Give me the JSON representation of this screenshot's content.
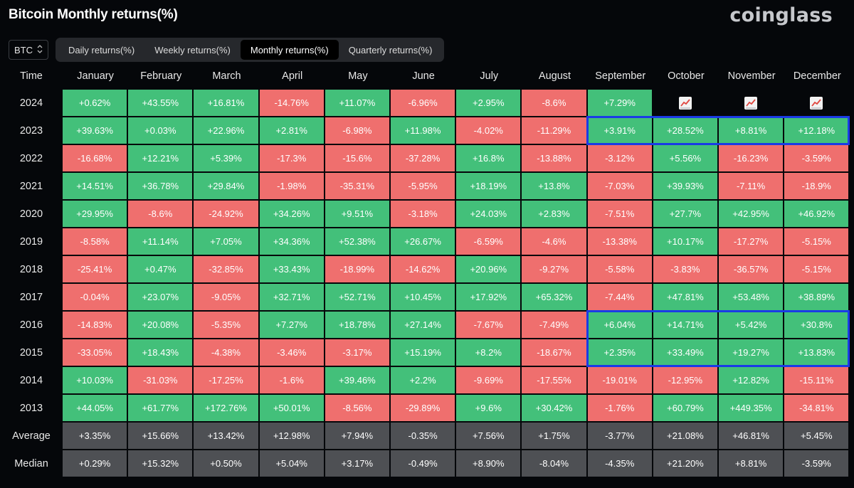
{
  "header": {
    "title": "Bitcoin Monthly returns(%)",
    "brand": "coinglass"
  },
  "asset_select": {
    "value": "BTC"
  },
  "tabs": [
    {
      "label": "Daily returns(%)",
      "active": false
    },
    {
      "label": "Weekly returns(%)",
      "active": false
    },
    {
      "label": "Monthly returns(%)",
      "active": true
    },
    {
      "label": "Quarterly returns(%)",
      "active": false
    }
  ],
  "colors": {
    "positive": "#43c07a",
    "negative": "#ef6f6e",
    "stat": "#4e5054",
    "highlight": "#1a3be6"
  },
  "chart_data": {
    "type": "heatmap",
    "title": "Bitcoin Monthly returns(%)",
    "corner_label": "Time",
    "columns": [
      "January",
      "February",
      "March",
      "April",
      "May",
      "June",
      "July",
      "August",
      "September",
      "October",
      "November",
      "December"
    ],
    "rows": [
      {
        "label": "2024",
        "values": [
          "+0.62%",
          "+43.55%",
          "+16.81%",
          "-14.76%",
          "+11.07%",
          "-6.96%",
          "+2.95%",
          "-8.6%",
          "+7.29%",
          null,
          null,
          null
        ]
      },
      {
        "label": "2023",
        "values": [
          "+39.63%",
          "+0.03%",
          "+22.96%",
          "+2.81%",
          "-6.98%",
          "+11.98%",
          "-4.02%",
          "-11.29%",
          "+3.91%",
          "+28.52%",
          "+8.81%",
          "+12.18%"
        ]
      },
      {
        "label": "2022",
        "values": [
          "-16.68%",
          "+12.21%",
          "+5.39%",
          "-17.3%",
          "-15.6%",
          "-37.28%",
          "+16.8%",
          "-13.88%",
          "-3.12%",
          "+5.56%",
          "-16.23%",
          "-3.59%"
        ]
      },
      {
        "label": "2021",
        "values": [
          "+14.51%",
          "+36.78%",
          "+29.84%",
          "-1.98%",
          "-35.31%",
          "-5.95%",
          "+18.19%",
          "+13.8%",
          "-7.03%",
          "+39.93%",
          "-7.11%",
          "-18.9%"
        ]
      },
      {
        "label": "2020",
        "values": [
          "+29.95%",
          "-8.6%",
          "-24.92%",
          "+34.26%",
          "+9.51%",
          "-3.18%",
          "+24.03%",
          "+2.83%",
          "-7.51%",
          "+27.7%",
          "+42.95%",
          "+46.92%"
        ]
      },
      {
        "label": "2019",
        "values": [
          "-8.58%",
          "+11.14%",
          "+7.05%",
          "+34.36%",
          "+52.38%",
          "+26.67%",
          "-6.59%",
          "-4.6%",
          "-13.38%",
          "+10.17%",
          "-17.27%",
          "-5.15%"
        ]
      },
      {
        "label": "2018",
        "values": [
          "-25.41%",
          "+0.47%",
          "-32.85%",
          "+33.43%",
          "-18.99%",
          "-14.62%",
          "+20.96%",
          "-9.27%",
          "-5.58%",
          "-3.83%",
          "-36.57%",
          "-5.15%"
        ]
      },
      {
        "label": "2017",
        "values": [
          "-0.04%",
          "+23.07%",
          "-9.05%",
          "+32.71%",
          "+52.71%",
          "+10.45%",
          "+17.92%",
          "+65.32%",
          "-7.44%",
          "+47.81%",
          "+53.48%",
          "+38.89%"
        ]
      },
      {
        "label": "2016",
        "values": [
          "-14.83%",
          "+20.08%",
          "-5.35%",
          "+7.27%",
          "+18.78%",
          "+27.14%",
          "-7.67%",
          "-7.49%",
          "+6.04%",
          "+14.71%",
          "+5.42%",
          "+30.8%"
        ]
      },
      {
        "label": "2015",
        "values": [
          "-33.05%",
          "+18.43%",
          "-4.38%",
          "-3.46%",
          "-3.17%",
          "+15.19%",
          "+8.2%",
          "-18.67%",
          "+2.35%",
          "+33.49%",
          "+19.27%",
          "+13.83%"
        ]
      },
      {
        "label": "2014",
        "values": [
          "+10.03%",
          "-31.03%",
          "-17.25%",
          "-1.6%",
          "+39.46%",
          "+2.2%",
          "-9.69%",
          "-17.55%",
          "-19.01%",
          "-12.95%",
          "+12.82%",
          "-15.11%"
        ]
      },
      {
        "label": "2013",
        "values": [
          "+44.05%",
          "+61.77%",
          "+172.76%",
          "+50.01%",
          "-8.56%",
          "-29.89%",
          "+9.6%",
          "+30.42%",
          "-1.76%",
          "+60.79%",
          "+449.35%",
          "-34.81%"
        ]
      }
    ],
    "summary_rows": [
      {
        "label": "Average",
        "values": [
          "+3.35%",
          "+15.66%",
          "+13.42%",
          "+12.98%",
          "+7.94%",
          "-0.35%",
          "+7.56%",
          "+1.75%",
          "-3.77%",
          "+21.08%",
          "+46.81%",
          "+5.45%"
        ]
      },
      {
        "label": "Median",
        "values": [
          "+0.29%",
          "+15.32%",
          "+0.50%",
          "+5.04%",
          "+3.17%",
          "-0.49%",
          "+8.90%",
          "-8.04%",
          "-4.35%",
          "+21.20%",
          "+8.81%",
          "-3.59%"
        ]
      }
    ],
    "pending_icon": "chart-up-icon",
    "highlights": [
      {
        "rows": [
          "2023"
        ],
        "columns": [
          "September",
          "October",
          "November",
          "December"
        ]
      },
      {
        "rows": [
          "2016",
          "2015"
        ],
        "columns": [
          "September",
          "October",
          "November",
          "December"
        ]
      }
    ]
  }
}
